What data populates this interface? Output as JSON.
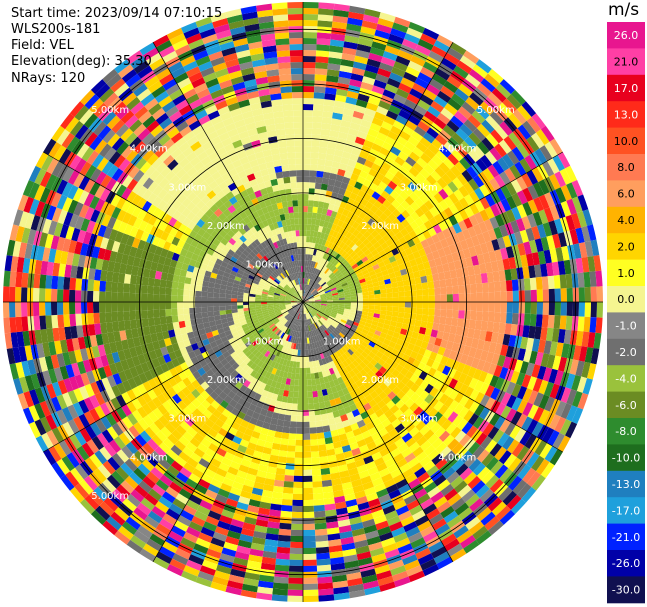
{
  "header": {
    "start_time": "Start time: 2023/09/14 07:10:15",
    "instrument": "WLS200s-181",
    "field": "Field: VEL",
    "elevation": "Elevation(deg): 35.30",
    "nrays": "NRays: 120"
  },
  "colorbar": {
    "unit": "m/s",
    "ticks": [
      "26.0",
      "21.0",
      "17.0",
      "13.0",
      "10.0",
      "8.0",
      "6.0",
      "4.0",
      "2.0",
      "1.0",
      "0.0",
      "-1.0",
      "-2.0",
      "-4.0",
      "-6.0",
      "-8.0",
      "-10.0",
      "-13.0",
      "-17.0",
      "-21.0",
      "-26.0",
      "-30.0"
    ],
    "colors": [
      "#e8168f",
      "#ff3fa5",
      "#e8001e",
      "#ff2a1a",
      "#ff5222",
      "#ff7a52",
      "#ff9e5e",
      "#ffb300",
      "#ffd500",
      "#ffff22",
      "#f5f590",
      "#868686",
      "#6f6f6f",
      "#9ac23c",
      "#6b8c23",
      "#2e8c2e",
      "#1e6e1e",
      "#1f7fbf",
      "#1fa0dc",
      "#0022ff",
      "#0000a8",
      "#101050"
    ]
  },
  "chart_data": {
    "type": "heatmap",
    "projection": "polar-ppi",
    "field": "VEL",
    "unit": "m/s",
    "nrays": 120,
    "range_rings_km": [
      "1.00km",
      "2.00km",
      "3.00km",
      "4.00km",
      "5.00km"
    ],
    "range_labels": [
      {
        "text": "1.00km",
        "bearing": -45,
        "ring_km": 1
      },
      {
        "text": "1.00km",
        "bearing": -135,
        "ring_km": 1
      },
      {
        "text": "1.00km",
        "bearing": 135,
        "ring_km": 1
      },
      {
        "text": "2.00km",
        "bearing": -45,
        "ring_km": 2
      },
      {
        "text": "2.00km",
        "bearing": 45,
        "ring_km": 2
      },
      {
        "text": "2.00km",
        "bearing": 135,
        "ring_km": 2
      },
      {
        "text": "2.00km",
        "bearing": -135,
        "ring_km": 2
      },
      {
        "text": "3.00km",
        "bearing": -45,
        "ring_km": 3
      },
      {
        "text": "3.00km",
        "bearing": 45,
        "ring_km": 3
      },
      {
        "text": "3.00km",
        "bearing": 135,
        "ring_km": 3
      },
      {
        "text": "3.00km",
        "bearing": -135,
        "ring_km": 3
      },
      {
        "text": "4.00km",
        "bearing": -45,
        "ring_km": 4
      },
      {
        "text": "4.00km",
        "bearing": 45,
        "ring_km": 4
      },
      {
        "text": "4.00km",
        "bearing": 135,
        "ring_km": 4
      },
      {
        "text": "4.00km",
        "bearing": -135,
        "ring_km": 4
      },
      {
        "text": "5.00km",
        "bearing": -45,
        "ring_km": 5
      },
      {
        "text": "5.00km",
        "bearing": 45,
        "ring_km": 5
      },
      {
        "text": "5.00km",
        "bearing": -135,
        "ring_km": 5
      }
    ],
    "colorscale_ms": [
      26.0,
      21.0,
      17.0,
      13.0,
      10.0,
      8.0,
      6.0,
      4.0,
      2.0,
      1.0,
      0.0,
      -1.0,
      -2.0,
      -4.0,
      -6.0,
      -8.0,
      -10.0,
      -13.0,
      -17.0,
      -21.0,
      -26.0,
      -30.0
    ],
    "grid": true,
    "legend": "right"
  }
}
